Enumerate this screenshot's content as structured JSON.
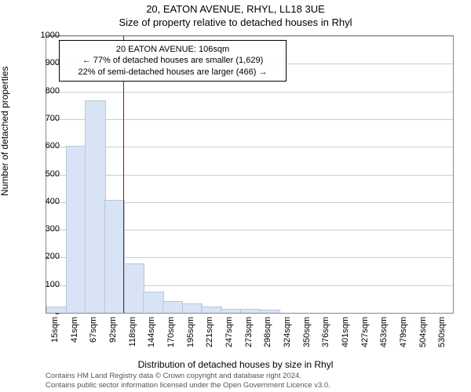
{
  "title_main": "20, EATON AVENUE, RHYL, LL18 3UE",
  "title_sub": "Size of property relative to detached houses in Rhyl",
  "ylabel": "Number of detached properties",
  "xlabel": "Distribution of detached houses by size in Rhyl",
  "attribution_line1": "Contains HM Land Registry data © Crown copyright and database right 2024.",
  "attribution_line2": "Contains public sector information licensed under the Open Government Licence v3.0.",
  "chart": {
    "type": "bar",
    "xtick_labels": [
      "15sqm",
      "41sqm",
      "67sqm",
      "92sqm",
      "118sqm",
      "144sqm",
      "170sqm",
      "195sqm",
      "221sqm",
      "247sqm",
      "273sqm",
      "298sqm",
      "324sqm",
      "350sqm",
      "376sqm",
      "401sqm",
      "427sqm",
      "453sqm",
      "479sqm",
      "504sqm",
      "530sqm"
    ],
    "ytick_values": [
      0,
      100,
      200,
      300,
      400,
      500,
      600,
      700,
      800,
      900,
      1000
    ],
    "ylim": [
      0,
      1000
    ],
    "values": [
      20,
      600,
      765,
      405,
      175,
      75,
      40,
      30,
      20,
      12,
      10,
      8,
      0,
      0,
      0,
      0,
      0,
      0,
      0,
      0,
      0
    ],
    "bar_fill": "#d8e4f5",
    "bar_stroke": "#b9c6da",
    "grid_color": "#cccccc",
    "border_color": "#888888",
    "background": "#ffffff",
    "ref_line": {
      "x_index": 3.5,
      "color": "#cc0000"
    },
    "annotation": {
      "line1": "20 EATON AVENUE: 106sqm",
      "line2": "← 77% of detached houses are smaller (1,629)",
      "line3": "22% of semi-detached houses are larger (466) →"
    }
  }
}
